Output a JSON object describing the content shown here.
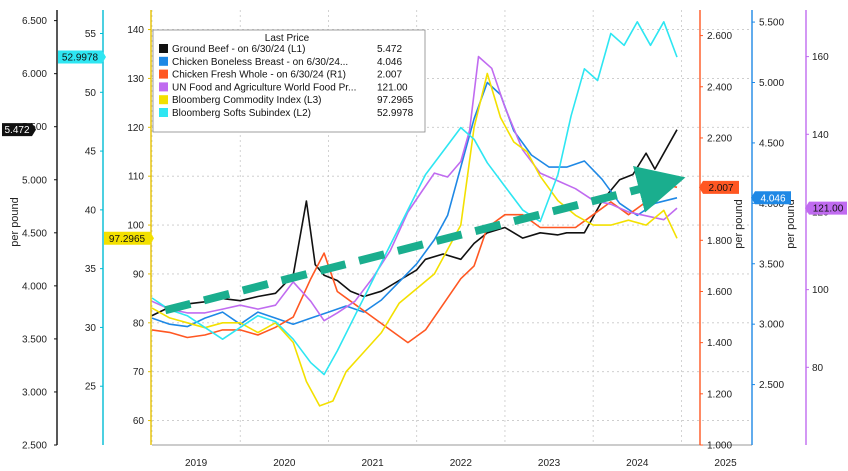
{
  "chart_data": {
    "type": "line",
    "x_tick_labels": [
      "2019",
      "2020",
      "2021",
      "2022",
      "2023",
      "2024",
      "2025"
    ],
    "x_range": [
      2018.5,
      2025.3
    ],
    "legend_title": "Last Price",
    "axes": {
      "L1": {
        "ylabel": "per pound",
        "ylim": [
          2.5,
          6.6
        ],
        "ticks": [
          "2.500",
          "3.000",
          "3.500",
          "4.000",
          "4.500",
          "5.000",
          "5.500",
          "6.000",
          "6.500"
        ],
        "color": "#111111"
      },
      "L2": {
        "ylim": [
          20,
          57
        ],
        "ticks": [
          "25",
          "30",
          "35",
          "40",
          "45",
          "50",
          "55"
        ],
        "color": "#00bcd4"
      },
      "L3": {
        "ylim": [
          55,
          144
        ],
        "ticks": [
          "60",
          "70",
          "80",
          "90",
          "100",
          "110",
          "120",
          "130",
          "140"
        ],
        "color": "#e6c200"
      },
      "R1": {
        "ylabel": "per pound",
        "ylim": [
          1.0,
          2.7
        ],
        "ticks": [
          "1.000",
          "1.200",
          "1.400",
          "1.600",
          "1.800",
          "2.000",
          "2.200",
          "2.400",
          "2.600"
        ],
        "color": "#ff5722"
      },
      "R2": {
        "ylabel": "per pound",
        "ylim": [
          2.0,
          5.6
        ],
        "ticks": [
          "2.500",
          "3.000",
          "3.500",
          "4.000",
          "4.500",
          "5.000",
          "5.500"
        ],
        "color": "#1e88e5"
      },
      "R3": {
        "ylim": [
          60,
          172
        ],
        "ticks": [
          "80",
          "100",
          "120",
          "140",
          "160"
        ],
        "color": "#c06bf0"
      }
    },
    "series": [
      {
        "key": "beef",
        "legend": "Ground Beef - on 6/30/24 (L1)",
        "last": "5.472",
        "axis": "L1",
        "color": "#111111",
        "x": [
          2018.5,
          2018.7,
          2018.9,
          2019.1,
          2019.3,
          2019.5,
          2019.7,
          2019.9,
          2020.1,
          2020.25,
          2020.35,
          2020.45,
          2020.6,
          2020.75,
          2020.9,
          2021.1,
          2021.3,
          2021.5,
          2021.6,
          2021.8,
          2022.0,
          2022.15,
          2022.3,
          2022.5,
          2022.7,
          2022.9,
          2023.1,
          2023.2,
          2023.4,
          2023.6,
          2023.8,
          2023.95,
          2024.1,
          2024.2,
          2024.3,
          2024.45
        ],
        "y": [
          3.72,
          3.8,
          3.83,
          3.85,
          3.88,
          3.86,
          3.9,
          3.93,
          4.1,
          4.8,
          4.2,
          4.1,
          4.05,
          3.95,
          3.9,
          3.95,
          4.05,
          4.15,
          4.25,
          4.3,
          4.25,
          4.4,
          4.5,
          4.55,
          4.45,
          4.5,
          4.48,
          4.5,
          4.5,
          4.8,
          5.0,
          5.05,
          5.25,
          5.1,
          5.25,
          5.472
        ]
      },
      {
        "key": "chicken_breast",
        "legend": "Chicken Boneless Breast - on 6/30/24...",
        "last": "4.046",
        "axis": "R2",
        "color": "#1e88e5",
        "x": [
          2018.5,
          2018.7,
          2018.9,
          2019.1,
          2019.3,
          2019.5,
          2019.7,
          2019.9,
          2020.1,
          2020.3,
          2020.5,
          2020.7,
          2020.9,
          2021.1,
          2021.3,
          2021.5,
          2021.7,
          2021.85,
          2022.0,
          2022.15,
          2022.3,
          2022.45,
          2022.6,
          2022.8,
          2023.0,
          2023.2,
          2023.4,
          2023.6,
          2023.8,
          2024.0,
          2024.2,
          2024.45
        ],
        "y": [
          3.05,
          3.0,
          2.98,
          3.05,
          3.1,
          3.0,
          3.1,
          3.05,
          3.0,
          3.05,
          3.1,
          3.15,
          3.1,
          3.2,
          3.35,
          3.5,
          3.7,
          3.9,
          4.3,
          4.7,
          5.0,
          4.9,
          4.6,
          4.4,
          4.3,
          4.3,
          4.35,
          4.2,
          4.0,
          3.9,
          4.0,
          4.046
        ]
      },
      {
        "key": "chicken_whole",
        "legend": "Chicken Fresh Whole - on 6/30/24 (R1)",
        "last": "2.007",
        "axis": "R1",
        "color": "#ff5722",
        "x": [
          2018.5,
          2018.7,
          2018.9,
          2019.1,
          2019.3,
          2019.5,
          2019.7,
          2019.9,
          2020.1,
          2020.3,
          2020.45,
          2020.6,
          2020.8,
          2021.0,
          2021.2,
          2021.4,
          2021.6,
          2021.8,
          2022.0,
          2022.15,
          2022.3,
          2022.5,
          2022.7,
          2022.9,
          2023.1,
          2023.3,
          2023.5,
          2023.7,
          2023.9,
          2024.1,
          2024.3,
          2024.45
        ],
        "y": [
          1.45,
          1.44,
          1.42,
          1.43,
          1.45,
          1.45,
          1.43,
          1.46,
          1.5,
          1.65,
          1.75,
          1.6,
          1.55,
          1.5,
          1.45,
          1.4,
          1.45,
          1.55,
          1.65,
          1.7,
          1.85,
          1.9,
          1.9,
          1.85,
          1.85,
          1.85,
          1.9,
          1.95,
          1.9,
          1.95,
          2.02,
          2.007
        ]
      },
      {
        "key": "fao",
        "legend": "UN Food and Agriculture World Food Pr...",
        "last": "121.00",
        "axis": "R3",
        "color": "#c06bf0",
        "x": [
          2018.5,
          2018.7,
          2018.9,
          2019.1,
          2019.3,
          2019.5,
          2019.7,
          2019.9,
          2020.1,
          2020.3,
          2020.45,
          2020.6,
          2020.8,
          2021.0,
          2021.2,
          2021.4,
          2021.55,
          2021.7,
          2021.85,
          2022.0,
          2022.1,
          2022.2,
          2022.35,
          2022.5,
          2022.7,
          2022.9,
          2023.1,
          2023.3,
          2023.5,
          2023.7,
          2023.9,
          2024.1,
          2024.3,
          2024.45
        ],
        "y": [
          97,
          95,
          94,
          94,
          95,
          96,
          95,
          96,
          102,
          97,
          92,
          94,
          97,
          103,
          110,
          120,
          125,
          130,
          129,
          133,
          141,
          160,
          157,
          147,
          136,
          130,
          128,
          126,
          123,
          122,
          120,
          119,
          118,
          121
        ]
      },
      {
        "key": "bcom",
        "legend": "Bloomberg Commodity Index (L3)",
        "last": "97.2965",
        "axis": "L3",
        "color": "#f3e000",
        "x": [
          2018.5,
          2018.7,
          2018.9,
          2019.1,
          2019.3,
          2019.5,
          2019.7,
          2019.9,
          2020.1,
          2020.25,
          2020.4,
          2020.55,
          2020.7,
          2020.9,
          2021.1,
          2021.3,
          2021.5,
          2021.7,
          2021.85,
          2022.0,
          2022.15,
          2022.3,
          2022.45,
          2022.6,
          2022.75,
          2022.9,
          2023.1,
          2023.3,
          2023.5,
          2023.7,
          2023.9,
          2024.1,
          2024.3,
          2024.45
        ],
        "y": [
          83,
          81,
          80,
          79,
          80,
          80,
          78,
          80,
          76,
          68,
          63,
          64,
          70,
          74,
          78,
          84,
          87,
          90,
          95,
          100,
          120,
          131,
          122,
          117,
          115,
          110,
          105,
          102,
          100,
          100,
          101,
          100,
          103,
          97.2965
        ]
      },
      {
        "key": "softs",
        "legend": "Bloomberg Softs Subindex (L2)",
        "last": "52.9978",
        "axis": "L2",
        "color": "#2ee6f2",
        "x": [
          2018.5,
          2018.7,
          2018.9,
          2019.1,
          2019.3,
          2019.5,
          2019.7,
          2019.9,
          2020.1,
          2020.3,
          2020.45,
          2020.6,
          2020.8,
          2021.0,
          2021.2,
          2021.4,
          2021.6,
          2021.8,
          2022.0,
          2022.15,
          2022.3,
          2022.5,
          2022.7,
          2022.9,
          2023.1,
          2023.25,
          2023.4,
          2023.55,
          2023.7,
          2023.85,
          2024.0,
          2024.15,
          2024.3,
          2024.45
        ],
        "y": [
          32.5,
          31.5,
          31,
          30,
          29,
          30,
          31,
          30.5,
          29,
          27,
          26,
          28,
          31,
          34,
          37,
          40,
          43,
          45,
          47,
          46,
          44,
          42,
          40,
          39,
          43,
          48,
          52,
          51,
          55,
          54,
          56,
          54,
          56,
          52.9978
        ]
      }
    ],
    "trend_arrow": {
      "x": [
        2018.65,
        2024.3
      ],
      "y_L1": [
        3.77,
        4.97
      ],
      "color": "#1aae8e"
    }
  }
}
